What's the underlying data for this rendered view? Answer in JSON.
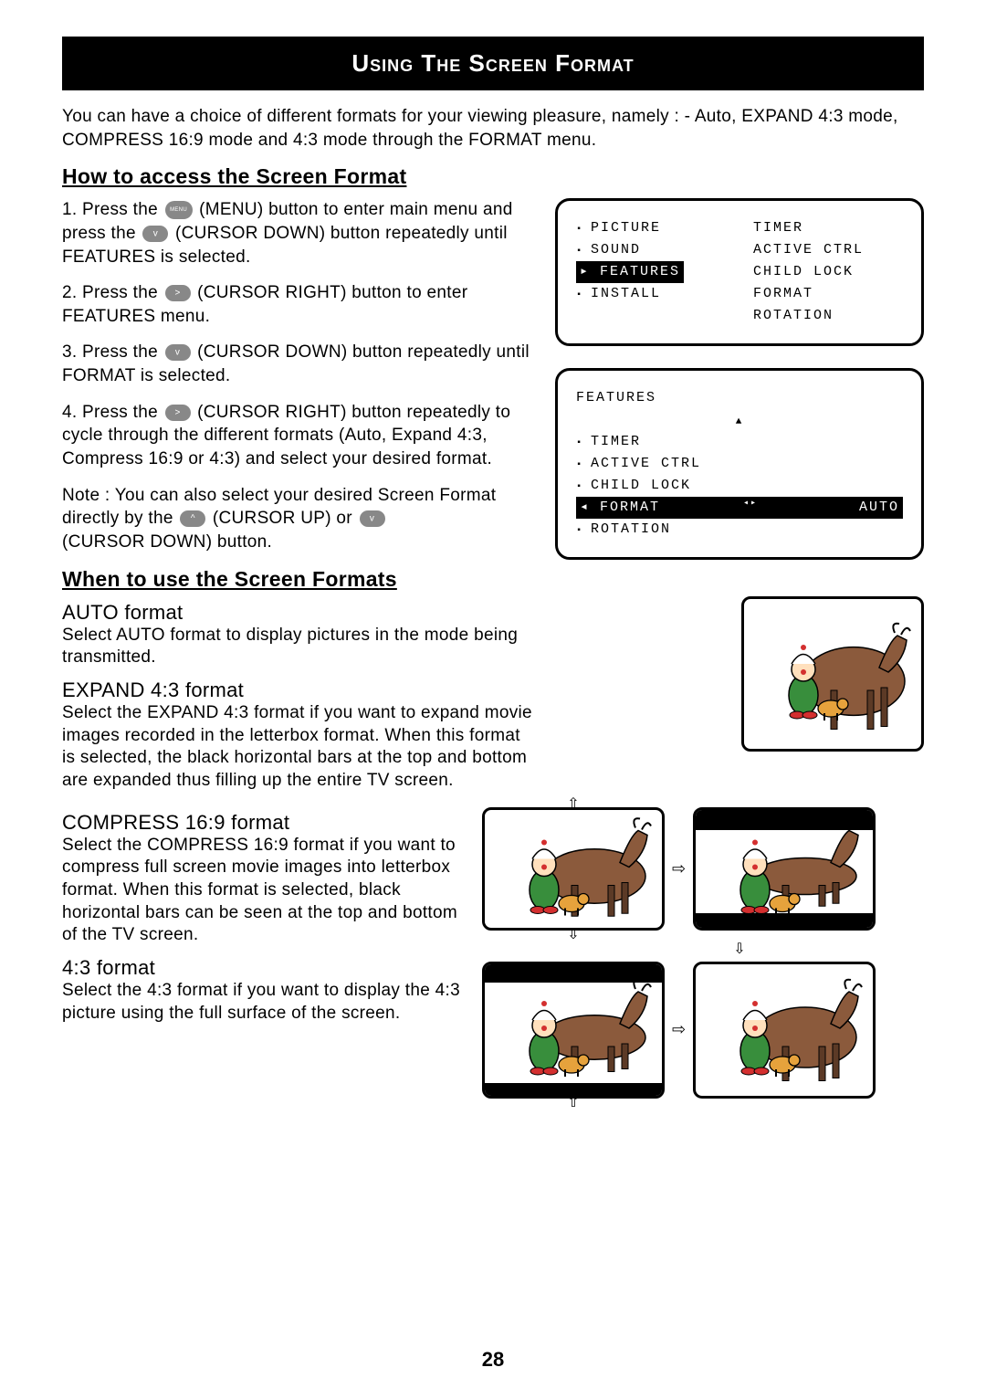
{
  "title": "Using The Screen Format",
  "intro": "You can have a choice of different formats for your viewing pleasure, namely : - Auto, EXPAND 4:3 mode, COMPRESS 16:9 mode and 4:3 mode through the FORMAT menu.",
  "access_heading": "How to access the Screen Format",
  "steps": {
    "s1a": "1. Press the ",
    "s1b": " (MENU) button to enter main menu and press the ",
    "s1c": " (CURSOR DOWN) button repeatedly until FEATURES is selected.",
    "s2a": "2. Press the ",
    "s2b": " (CURSOR RIGHT) button to enter FEATURES menu.",
    "s3a": "3. Press the ",
    "s3b": " (CURSOR DOWN) button repeatedly until FORMAT is selected.",
    "s4a": "4. Press the ",
    "s4b": " (CURSOR RIGHT) button repeatedly to cycle through the different formats (Auto, Expand 4:3, Compress 16:9 or 4:3) and select your desired format."
  },
  "note_a": "Note : You can also select your desired Screen Format directly by the ",
  "note_b": " (CURSOR UP) or ",
  "note_c": " (CURSOR DOWN) button.",
  "when_heading": "When to use the Screen Formats",
  "auto_heading": "AUTO format",
  "auto_text": "Select AUTO format to display pictures in the mode being transmitted.",
  "expand_heading": "EXPAND 4:3 format",
  "expand_text": "Select the EXPAND 4:3 format if you want to expand movie images recorded in the letterbox format. When this format is selected, the black horizontal bars at the top and bottom are expanded thus filling up the entire TV screen.",
  "compress_heading": "COMPRESS 16:9 format",
  "compress_text": "Select the COMPRESS 16:9 format if you want to compress full screen movie images into letterbox format. When this format is selected, black horizontal bars can be seen at the top and bottom of the TV screen.",
  "f43_heading": "4:3 format",
  "f43_text": "Select the 4:3 format if you want to display the 4:3 picture using the full surface of the screen.",
  "menu1": {
    "left": [
      "PICTURE",
      "SOUND",
      "FEATURES",
      "INSTALL"
    ],
    "right": [
      "TIMER",
      "ACTIVE CTRL",
      "CHILD LOCK",
      "FORMAT",
      "ROTATION"
    ],
    "highlight_left_index": 2
  },
  "menu2": {
    "header": "FEATURES",
    "items": [
      "TIMER",
      "ACTIVE CTRL",
      "CHILD LOCK",
      "FORMAT",
      "ROTATION"
    ],
    "highlight_index": 3,
    "highlight_value": "AUTO"
  },
  "page_number": "28",
  "colors": {
    "horse": "#8b5a3c",
    "horse_dark": "#5c3a26",
    "clown_hat": "#ffffff",
    "clown_red": "#d32f2f",
    "clown_green": "#388e3c",
    "dog": "#e6a23c"
  }
}
